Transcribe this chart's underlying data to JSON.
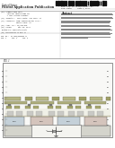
{
  "bg": "#ffffff",
  "text_dark": "#222222",
  "text_mid": "#555555",
  "text_light": "#888888",
  "line_color": "#aaaaaa",
  "barcode_color": "#111111",
  "diagram_border": "#666666",
  "diagram_bg": "#f8f8f6",
  "substrate_color": "#d8d8d0",
  "well_color1": "#c0ccd4",
  "well_color2": "#d4c8c0",
  "gate_color": "#909090",
  "metal_color": "#b0b0a0",
  "oxide_color": "#e8e4d8",
  "label_line": "#444444"
}
